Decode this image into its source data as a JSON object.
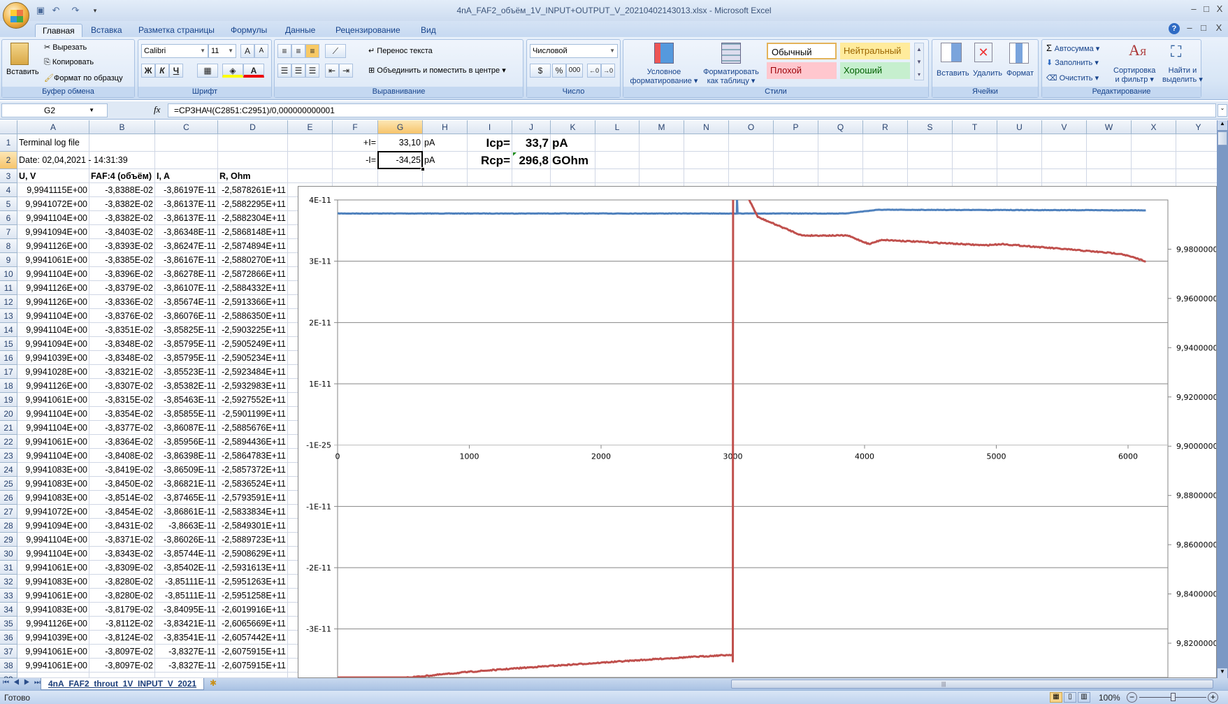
{
  "window": {
    "title": "4nA_FAF2_объём_1V_INPUT+OUTPUT_V_20210402143013.xlsx - Microsoft Excel",
    "controls": [
      "–",
      "□",
      "X"
    ],
    "doc_controls": [
      "?",
      "–",
      "□",
      "X"
    ]
  },
  "ribbon_tabs": [
    "Главная",
    "Вставка",
    "Разметка страницы",
    "Формулы",
    "Данные",
    "Рецензирование",
    "Вид"
  ],
  "ribbon": {
    "clipboard": {
      "label": "Буфер обмена",
      "paste": "Вставить",
      "cut": "Вырезать",
      "copy": "Копировать",
      "format_painter": "Формат по образцу"
    },
    "font": {
      "label": "Шрифт",
      "font_name": "Calibri",
      "font_size": "11",
      "bold": "Ж",
      "italic": "К",
      "underline": "Ч"
    },
    "alignment": {
      "label": "Выравнивание",
      "wrap_text": "Перенос текста",
      "merge_center": "Объединить и поместить в центре"
    },
    "number": {
      "label": "Число",
      "format": "Числовой",
      "percent": "%",
      "thousands": "000"
    },
    "styles": {
      "label": "Стили",
      "conditional": [
        "Условное",
        "форматирование"
      ],
      "as_table": [
        "Форматировать",
        "как таблицу"
      ],
      "cells": [
        {
          "label": "Обычный",
          "bg": "#ffffff",
          "fg": "#000000"
        },
        {
          "label": "Нейтральный",
          "bg": "#ffeb9c",
          "fg": "#9c6500"
        },
        {
          "label": "Плохой",
          "bg": "#ffc7ce",
          "fg": "#9c0006"
        },
        {
          "label": "Хороший",
          "bg": "#c6efce",
          "fg": "#006100"
        }
      ]
    },
    "cells": {
      "label": "Ячейки",
      "insert": "Вставить",
      "delete": "Удалить",
      "format": "Формат"
    },
    "editing": {
      "label": "Редактирование",
      "autosum": "Автосумма",
      "fill": "Заполнить",
      "clear": "Очистить",
      "sort": [
        "Сортировка",
        "и фильтр"
      ],
      "find": [
        "Найти и",
        "выделить"
      ]
    }
  },
  "formula_bar": {
    "name_box": "G2",
    "fx": "fx",
    "formula": "=СРЗНАЧ(C2851:C2951)/0,000000000001"
  },
  "sheet": {
    "columns": [
      "A",
      "B",
      "C",
      "D",
      "E",
      "F",
      "G",
      "H",
      "I",
      "J",
      "K",
      "L",
      "M",
      "N",
      "O",
      "P",
      "Q",
      "R",
      "S",
      "T",
      "U",
      "V",
      "W",
      "X",
      "Y"
    ],
    "selected_cell": "G2",
    "top_rows": [
      {
        "row": 1,
        "cells": {
          "A": "Terminal log file",
          "F": "+I=",
          "G": "33,10",
          "H": "pA",
          "I": "Icp=",
          "J": "33,7",
          "K": "pA"
        }
      },
      {
        "row": 2,
        "cells": {
          "A": "Date: 02,04,2021 - 14:31:39",
          "F": "-I=",
          "G": "-34,25",
          "H": "pA",
          "I": "Rcp=",
          "J": "296,8",
          "K": "GOhm"
        }
      },
      {
        "row": 3,
        "cells": {
          "A": "U, V",
          "B": "FAF:4 (объём)",
          "C": "I, A",
          "D": "R, Ohm"
        }
      }
    ],
    "data_rows": [
      [
        "9,9941115E+00",
        "-3,8388E-02",
        "-3,86197E-11",
        "-2,5878261E+11"
      ],
      [
        "9,9941072E+00",
        "-3,8382E-02",
        "-3,86137E-11",
        "-2,5882295E+11"
      ],
      [
        "9,9941104E+00",
        "-3,8382E-02",
        "-3,86137E-11",
        "-2,5882304E+11"
      ],
      [
        "9,9941094E+00",
        "-3,8403E-02",
        "-3,86348E-11",
        "-2,5868148E+11"
      ],
      [
        "9,9941126E+00",
        "-3,8393E-02",
        "-3,86247E-11",
        "-2,5874894E+11"
      ],
      [
        "9,9941061E+00",
        "-3,8385E-02",
        "-3,86167E-11",
        "-2,5880270E+11"
      ],
      [
        "9,9941104E+00",
        "-3,8396E-02",
        "-3,86278E-11",
        "-2,5872866E+11"
      ],
      [
        "9,9941126E+00",
        "-3,8379E-02",
        "-3,86107E-11",
        "-2,5884332E+11"
      ],
      [
        "9,9941126E+00",
        "-3,8336E-02",
        "-3,85674E-11",
        "-2,5913366E+11"
      ],
      [
        "9,9941104E+00",
        "-3,8376E-02",
        "-3,86076E-11",
        "-2,5886350E+11"
      ],
      [
        "9,9941104E+00",
        "-3,8351E-02",
        "-3,85825E-11",
        "-2,5903225E+11"
      ],
      [
        "9,9941094E+00",
        "-3,8348E-02",
        "-3,85795E-11",
        "-2,5905249E+11"
      ],
      [
        "9,9941039E+00",
        "-3,8348E-02",
        "-3,85795E-11",
        "-2,5905234E+11"
      ],
      [
        "9,9941028E+00",
        "-3,8321E-02",
        "-3,85523E-11",
        "-2,5923484E+11"
      ],
      [
        "9,9941126E+00",
        "-3,8307E-02",
        "-3,85382E-11",
        "-2,5932983E+11"
      ],
      [
        "9,9941061E+00",
        "-3,8315E-02",
        "-3,85463E-11",
        "-2,5927552E+11"
      ],
      [
        "9,9941104E+00",
        "-3,8354E-02",
        "-3,85855E-11",
        "-2,5901199E+11"
      ],
      [
        "9,9941104E+00",
        "-3,8377E-02",
        "-3,86087E-11",
        "-2,5885676E+11"
      ],
      [
        "9,9941061E+00",
        "-3,8364E-02",
        "-3,85956E-11",
        "-2,5894436E+11"
      ],
      [
        "9,9941104E+00",
        "-3,8408E-02",
        "-3,86398E-11",
        "-2,5864783E+11"
      ],
      [
        "9,9941083E+00",
        "-3,8419E-02",
        "-3,86509E-11",
        "-2,5857372E+11"
      ],
      [
        "9,9941083E+00",
        "-3,8450E-02",
        "-3,86821E-11",
        "-2,5836524E+11"
      ],
      [
        "9,9941083E+00",
        "-3,8514E-02",
        "-3,87465E-11",
        "-2,5793591E+11"
      ],
      [
        "9,9941072E+00",
        "-3,8454E-02",
        "-3,86861E-11",
        "-2,5833834E+11"
      ],
      [
        "9,9941094E+00",
        "-3,8431E-02",
        "-3,8663E-11",
        "-2,5849301E+11"
      ],
      [
        "9,9941104E+00",
        "-3,8371E-02",
        "-3,86026E-11",
        "-2,5889723E+11"
      ],
      [
        "9,9941104E+00",
        "-3,8343E-02",
        "-3,85744E-11",
        "-2,5908629E+11"
      ],
      [
        "9,9941061E+00",
        "-3,8309E-02",
        "-3,85402E-11",
        "-2,5931613E+11"
      ],
      [
        "9,9941083E+00",
        "-3,8280E-02",
        "-3,85111E-11",
        "-2,5951263E+11"
      ],
      [
        "9,9941061E+00",
        "-3,8280E-02",
        "-3,85111E-11",
        "-2,5951258E+11"
      ],
      [
        "9,9941083E+00",
        "-3,8179E-02",
        "-3,84095E-11",
        "-2,6019916E+11"
      ],
      [
        "9,9941126E+00",
        "-3,8112E-02",
        "-3,83421E-11",
        "-2,6065669E+11"
      ],
      [
        "9,9941039E+00",
        "-3,8124E-02",
        "-3,83541E-11",
        "-2,6057442E+11"
      ],
      [
        "9,9941061E+00",
        "-3,8097E-02",
        "-3,8327E-11",
        "-2,6075915E+11"
      ],
      [
        "9,9941061E+00",
        "-3,8097E-02",
        "-3,8327E-11",
        "-2,6075915E+11"
      ]
    ],
    "first_data_row": 4,
    "last_visible_row": 39
  },
  "chart_data": {
    "type": "line",
    "title": "",
    "grid": true,
    "legend": "none",
    "x_ticks": [
      "0",
      "1000",
      "2000",
      "3000",
      "4000",
      "5000",
      "6000"
    ],
    "xlim": [
      0,
      6300
    ],
    "y_ticks": [
      "4E-11",
      "3E-11",
      "2E-11",
      "1E-11",
      "-1E-25",
      "-1E-11",
      "-2E-11",
      "-3E-11"
    ],
    "ylim": [
      -5e-11,
      4e-11
    ],
    "y2_ticks": [
      "9,98000000",
      "9,96000000",
      "9,94000000",
      "9,92000000",
      "9,90000000",
      "9,88000000",
      "9,86000000",
      "9,84000000",
      "9,82000000"
    ],
    "y2lim": [
      9.776,
      10.0
    ],
    "series": [
      {
        "axis": "secondary",
        "color": "#4f81bd",
        "points": [
          [
            0,
            9.9945
          ],
          [
            3030,
            9.9945
          ],
          [
            3032,
            10.05
          ],
          [
            3036,
            9.9945
          ],
          [
            3850,
            9.9945
          ],
          [
            4100,
            9.996
          ],
          [
            6135,
            9.9958
          ]
        ]
      },
      {
        "axis": "primary",
        "color": "#c0504d",
        "points": [
          [
            0,
            -3.86e-11
          ],
          [
            500,
            -3.8e-11
          ],
          [
            1000,
            -3.7e-11
          ],
          [
            1500,
            -3.62e-11
          ],
          [
            2000,
            -3.55e-11
          ],
          [
            2500,
            -3.48e-11
          ],
          [
            2999,
            -3.42e-11
          ],
          [
            3000,
            -3.53e-11
          ],
          [
            3002,
            9e-11
          ],
          [
            3090,
            4.6e-11
          ],
          [
            3125,
            4e-11
          ],
          [
            3190,
            3.72e-11
          ],
          [
            3525,
            3.42e-11
          ],
          [
            3870,
            3.42e-11
          ],
          [
            4035,
            3.28e-11
          ],
          [
            4130,
            3.35e-11
          ],
          [
            4910,
            3.26e-11
          ],
          [
            5043,
            3.28e-11
          ],
          [
            5563,
            3.19e-11
          ],
          [
            5949,
            3.12e-11
          ],
          [
            6135,
            3e-11
          ]
        ]
      }
    ]
  },
  "sheet_tab": "4nA_FAF2_throut_1V_INPUT_V_2021",
  "status": {
    "ready": "Готово",
    "zoom": "100%",
    "zoom_level_percent": 100
  }
}
